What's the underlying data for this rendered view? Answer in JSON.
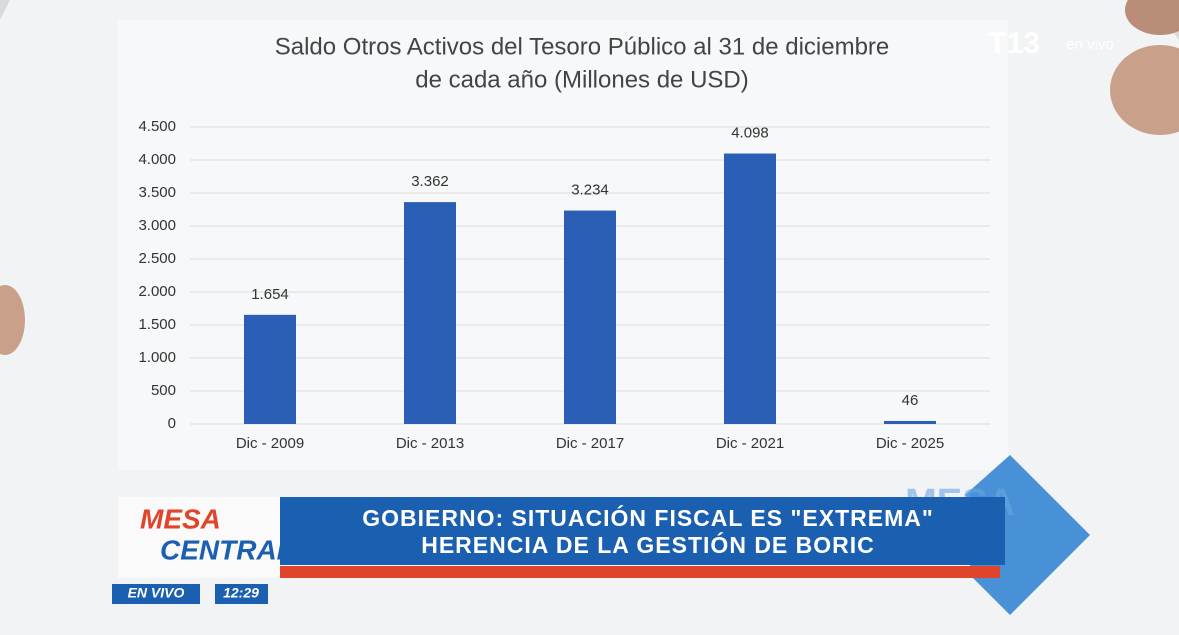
{
  "chart_data": {
    "type": "bar",
    "title": [
      "Saldo Otros Activos del Tesoro Público al 31 de diciembre",
      "de cada año (Millones de USD)"
    ],
    "categories": [
      "Dic - 2009",
      "Dic - 2013",
      "Dic - 2017",
      "Dic - 2021",
      "Dic - 2025"
    ],
    "values": [
      1654,
      3362,
      3234,
      4098,
      46
    ],
    "value_labels": [
      "1.654",
      "3.362",
      "3.234",
      "4.098",
      "46"
    ],
    "color": "#2a5fb5",
    "ylim": [
      0,
      4500
    ],
    "yticks": [
      0,
      500,
      {
        "value": 1000,
        "label": "1.000"
      },
      {
        "value": 1500,
        "label": "1.500"
      },
      {
        "value": 2000,
        "label": "2.000"
      },
      {
        "value": 2500,
        "label": "2.500"
      },
      {
        "value": 3000,
        "label": "3.000"
      },
      {
        "value": 3500,
        "label": "3.500"
      },
      {
        "value": 4000,
        "label": "4.000"
      },
      {
        "value": 4500,
        "label": "4.500"
      }
    ],
    "grid": true
  },
  "overlay": {
    "channel": "T13",
    "channel_live": "en vivo",
    "watermark": "MESA",
    "show": [
      "MESA",
      "CENTRAL"
    ],
    "headline": [
      "GOBIERNO: SITUACIÓN FISCAL ES \"EXTREMA\"",
      "HERENCIA DE LA GESTIÓN DE BORIC"
    ],
    "live": "EN VIVO",
    "time": "12:29"
  }
}
